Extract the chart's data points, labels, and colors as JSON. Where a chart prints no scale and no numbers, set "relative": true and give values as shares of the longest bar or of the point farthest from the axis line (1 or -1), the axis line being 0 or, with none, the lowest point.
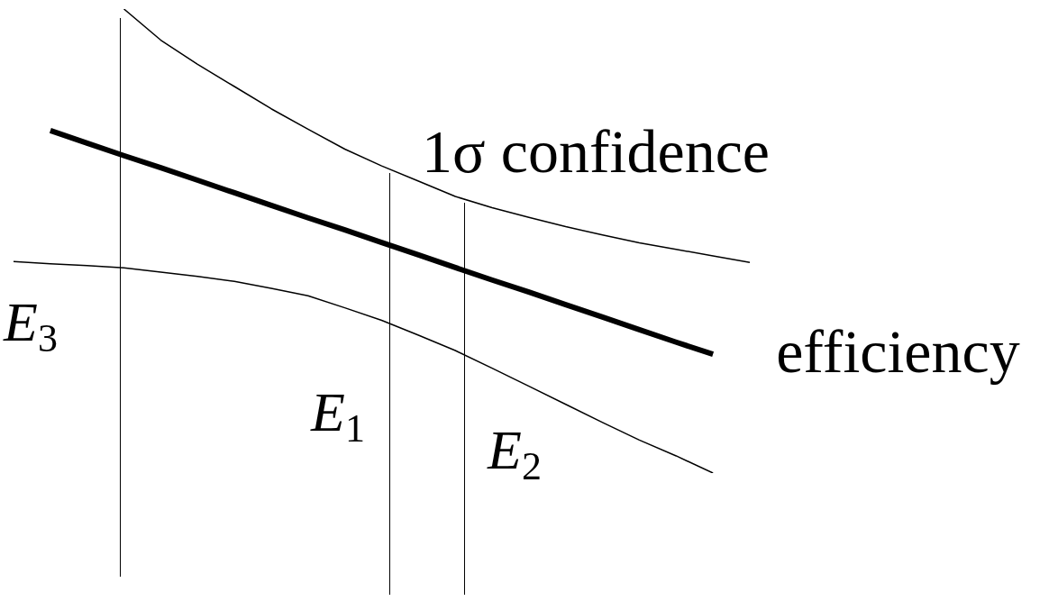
{
  "chart_data": {
    "type": "line",
    "relative": true,
    "marker": "none",
    "line_style": "solid",
    "categories": [
      null,
      null,
      null,
      null,
      null,
      null,
      null,
      null,
      null,
      null,
      null,
      null,
      null,
      null,
      null,
      null,
      null,
      null,
      null,
      null,
      null
    ],
    "series": [
      {
        "name": "efficiency",
        "color": "#000000",
        "values": [
          null,
          0.738,
          0.711,
          0.684,
          0.658,
          0.631,
          0.604,
          0.577,
          0.55,
          0.524,
          0.497,
          0.47,
          0.443,
          0.416,
          0.39,
          0.363,
          0.336,
          0.309,
          0.282,
          0.256,
          null
        ]
      },
      {
        "name": "1σ confidence",
        "color": "#000000",
        "values": [
          null,
          null,
          null,
          1.0,
          0.933,
          0.881,
          0.833,
          0.785,
          0.741,
          0.698,
          0.662,
          0.629,
          0.596,
          0.572,
          0.551,
          0.531,
          0.513,
          0.496,
          0.482,
          0.468,
          0.454
        ]
      },
      {
        "color": "#000000",
        "values": [
          0.456,
          0.451,
          0.447,
          0.442,
          0.433,
          0.424,
          0.413,
          0.398,
          0.382,
          0.356,
          0.329,
          0.297,
          0.264,
          0.226,
          0.187,
          0.148,
          0.109,
          0.071,
          0.037,
          0,
          null
        ]
      }
    ],
    "annotations": [
      "E$_{3}$",
      "E$_{1}$",
      "E$_{2}$"
    ]
  }
}
